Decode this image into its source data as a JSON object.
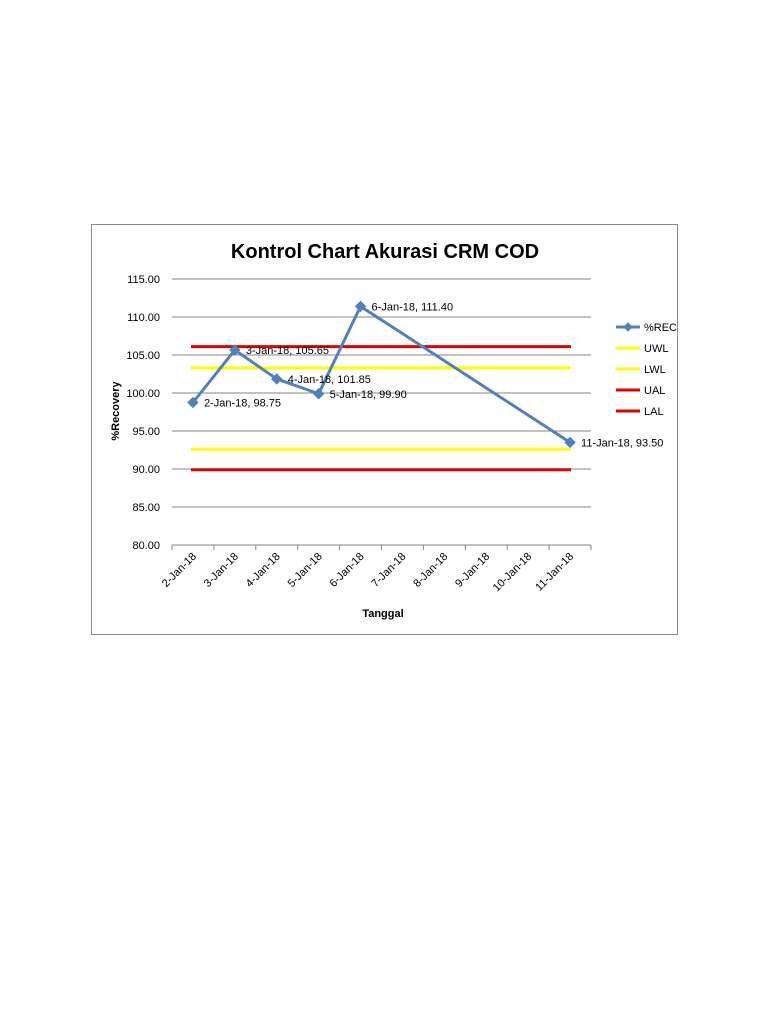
{
  "chart_data": {
    "type": "line",
    "title": "Kontrol Chart Akurasi CRM COD",
    "xlabel": "Tanggal",
    "ylabel": "%Recovery",
    "categories": [
      "2-Jan-18",
      "3-Jan-18",
      "4-Jan-18",
      "5-Jan-18",
      "6-Jan-18",
      "7-Jan-18",
      "8-Jan-18",
      "9-Jan-18",
      "10-Jan-18",
      "11-Jan-18"
    ],
    "ylim": [
      80,
      115
    ],
    "yticks": [
      "115.00",
      "110.00",
      "105.00",
      "100.00",
      "95.00",
      "90.00",
      "85.00",
      "80.00"
    ],
    "grid": true,
    "legend_position": "right",
    "series": [
      {
        "name": "%REC",
        "color": "#4f81bd",
        "marker": "diamond",
        "points": [
          {
            "x": "2-Jan-18",
            "y": 98.75,
            "label": "2-Jan-18, 98.75"
          },
          {
            "x": "3-Jan-18",
            "y": 105.65,
            "label": "3-Jan-18, 105.65"
          },
          {
            "x": "4-Jan-18",
            "y": 101.85,
            "label": "4-Jan-18, 101.85"
          },
          {
            "x": "5-Jan-18",
            "y": 99.9,
            "label": "5-Jan-18, 99.90"
          },
          {
            "x": "6-Jan-18",
            "y": 111.4,
            "label": "6-Jan-18, 111.40"
          },
          {
            "x": "11-Jan-18",
            "y": 93.5,
            "label": "11-Jan-18, 93.50"
          }
        ]
      },
      {
        "name": "UWL",
        "color": "#ffff00",
        "value": 103.3
      },
      {
        "name": "LWL",
        "color": "#ffff00",
        "value": 92.6
      },
      {
        "name": "UAL",
        "color": "#e00000",
        "value": 106.1
      },
      {
        "name": "LAL",
        "color": "#e00000",
        "value": 89.9
      }
    ]
  }
}
